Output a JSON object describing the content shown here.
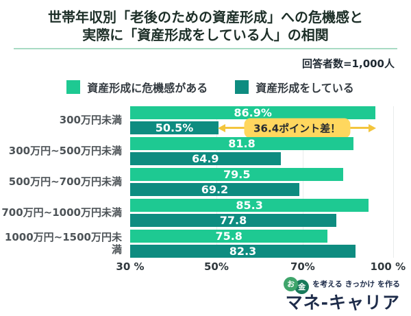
{
  "title": {
    "line1": "世帯年収別「老後のための資産形成」への危機感と",
    "line2": "実際に「資産形成をしている人」の相関"
  },
  "respondents": "回答者数=1,000人",
  "legend": [
    {
      "label": "資産形成に危機感がある",
      "color": "#1ec992"
    },
    {
      "label": "資産形成をしている",
      "color": "#0e8c80"
    }
  ],
  "chart_data": {
    "type": "bar",
    "orientation": "horizontal",
    "title": "世帯年収別「老後のための資産形成」への危機感と実際に「資産形成をしている人」の相関",
    "categories": [
      "300万円未満",
      "300万円~500万円未満",
      "500万円~700万円未満",
      "700万円~1000万円未満",
      "1000万円~1500万円未満"
    ],
    "series": [
      {
        "name": "資産形成に危機感がある",
        "color": "#1ec992",
        "values": [
          86.9,
          81.8,
          79.5,
          85.3,
          75.8
        ],
        "labels": [
          "86.9%",
          "81.8",
          "79.5",
          "85.3",
          "75.8"
        ]
      },
      {
        "name": "資産形成をしている",
        "color": "#0e8c80",
        "values": [
          50.5,
          64.9,
          69.2,
          77.8,
          82.3
        ],
        "labels": [
          "50.5%",
          "64.9",
          "69.2",
          "77.8",
          "82.3"
        ]
      }
    ],
    "x_ticks": [
      "30 %",
      "50%",
      "70%",
      "100 %"
    ],
    "x_tick_positions_pct": [
      0,
      32.8,
      65.6,
      98
    ],
    "grid_positions_pct": [
      32.8,
      65.6,
      100
    ],
    "axis_min": 30,
    "axis_span": 61,
    "grid": "vertical-light",
    "gridline_color": "#e9ecec",
    "value_label_color": "#ffffff",
    "annotation": {
      "text": "36.4ポイント差！",
      "row_index": 0,
      "from_value": 50.5,
      "to_value": 86.9,
      "pill_color": "#ffd75e",
      "arrow_color": "#f3c53d"
    }
  },
  "logo": {
    "coin1": "お",
    "coin2": "金",
    "tagline": "を考える きっかけ を作る",
    "brand": "マネ-キャリア"
  }
}
